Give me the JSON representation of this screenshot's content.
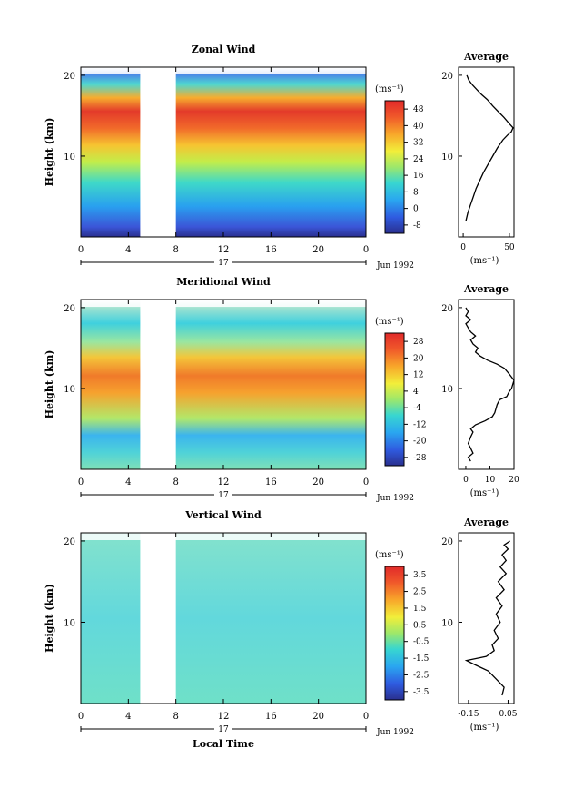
{
  "chart_data": [
    {
      "id": "zonal",
      "type": "heatmap",
      "title": "Zonal Wind",
      "ylabel": "Height (km)",
      "y_ticks": [
        "20",
        "10"
      ],
      "x_ticks": [
        "0",
        "4",
        "8",
        "12",
        "16",
        "20",
        "0"
      ],
      "day_label": "17",
      "date_label": "Jun 1992",
      "unit_label": "(ms⁻¹)",
      "colorbar_ticks": [
        "48",
        "40",
        "32",
        "24",
        "16",
        "8",
        "0",
        "-8"
      ],
      "colorbar_range": [
        -12,
        52
      ],
      "data_gap_hours": [
        5,
        8
      ],
      "profile_title": "Average",
      "profile_x_ticks": [
        "0",
        "50"
      ],
      "profile_xlabel": "(ms⁻¹)",
      "profile_y_ticks": [
        "20",
        "10"
      ],
      "profile_xlim": [
        -5,
        55
      ],
      "profile": [
        [
          3,
          2
        ],
        [
          5,
          3
        ],
        [
          8,
          4
        ],
        [
          11,
          5
        ],
        [
          14,
          6
        ],
        [
          18,
          7
        ],
        [
          22,
          8
        ],
        [
          27,
          9
        ],
        [
          32,
          10
        ],
        [
          37,
          11
        ],
        [
          43,
          12
        ],
        [
          48,
          12.6
        ],
        [
          52,
          13
        ],
        [
          54,
          13.5
        ],
        [
          50,
          14
        ],
        [
          44,
          14.8
        ],
        [
          38,
          15.5
        ],
        [
          32,
          16.2
        ],
        [
          26,
          17
        ],
        [
          20,
          17.6
        ],
        [
          15,
          18.2
        ],
        [
          10,
          18.8
        ],
        [
          6,
          19.4
        ],
        [
          4,
          20
        ]
      ]
    },
    {
      "id": "meridional",
      "type": "heatmap",
      "title": "Meridional Wind",
      "ylabel": "Height (km)",
      "y_ticks": [
        "20",
        "10"
      ],
      "x_ticks": [
        "0",
        "4",
        "8",
        "12",
        "16",
        "20",
        "0"
      ],
      "day_label": "17",
      "date_label": "Jun 1992",
      "unit_label": "(ms⁻¹)",
      "colorbar_ticks": [
        "28",
        "20",
        "12",
        "4",
        "-4",
        "-12",
        "-20",
        "-28"
      ],
      "colorbar_range": [
        -32,
        32
      ],
      "data_gap_hours": [
        5,
        8
      ],
      "profile_title": "Average",
      "profile_x_ticks": [
        "0",
        "10",
        "20"
      ],
      "profile_xlabel": "(ms⁻¹)",
      "profile_y_ticks": [
        "20",
        "10"
      ],
      "profile_xlim": [
        -3,
        20
      ],
      "profile": [
        [
          2,
          1
        ],
        [
          1,
          1.5
        ],
        [
          3,
          2
        ],
        [
          2,
          2.6
        ],
        [
          1,
          3.2
        ],
        [
          2,
          4
        ],
        [
          3,
          4.6
        ],
        [
          2,
          5
        ],
        [
          4,
          5.5
        ],
        [
          8,
          6
        ],
        [
          11,
          6.5
        ],
        [
          12,
          7
        ],
        [
          13,
          8
        ],
        [
          14,
          8.6
        ],
        [
          17,
          9
        ],
        [
          18,
          9.6
        ],
        [
          19,
          10
        ],
        [
          20,
          11
        ],
        [
          18,
          11.8
        ],
        [
          16,
          12.5
        ],
        [
          13,
          13
        ],
        [
          9,
          13.5
        ],
        [
          6,
          14
        ],
        [
          4,
          14.5
        ],
        [
          5,
          15
        ],
        [
          3,
          15.5
        ],
        [
          2,
          16
        ],
        [
          4,
          16.5
        ],
        [
          2,
          17
        ],
        [
          1,
          17.5
        ],
        [
          0,
          18
        ],
        [
          2,
          18.5
        ],
        [
          0,
          19
        ],
        [
          1,
          19.5
        ],
        [
          0,
          20
        ]
      ]
    },
    {
      "id": "vertical",
      "type": "heatmap",
      "title": "Vertical Wind",
      "ylabel": "Height (km)",
      "xlabel": "Local Time",
      "y_ticks": [
        "20",
        "10"
      ],
      "x_ticks": [
        "0",
        "4",
        "8",
        "12",
        "16",
        "20",
        "0"
      ],
      "day_label": "17",
      "date_label": "Jun 1992",
      "unit_label": "(ms⁻¹)",
      "colorbar_ticks": [
        "3.5",
        "2.5",
        "1.5",
        "0.5",
        "-0.5",
        "-1.5",
        "-2.5",
        "-3.5"
      ],
      "colorbar_range": [
        -4,
        4
      ],
      "data_gap_hours": [
        5,
        8
      ],
      "profile_title": "Average",
      "profile_x_ticks": [
        "-0.15",
        "0.05"
      ],
      "profile_xlabel": "(ms⁻¹)",
      "profile_y_ticks": [
        "20",
        "10"
      ],
      "profile_xlim": [
        -0.2,
        0.08
      ],
      "profile": [
        [
          0.02,
          1
        ],
        [
          0.03,
          2
        ],
        [
          -0.01,
          3
        ],
        [
          -0.05,
          4
        ],
        [
          -0.12,
          4.8
        ],
        [
          -0.16,
          5.3
        ],
        [
          -0.06,
          5.8
        ],
        [
          -0.02,
          6.5
        ],
        [
          -0.03,
          7.2
        ],
        [
          0,
          8
        ],
        [
          -0.02,
          9
        ],
        [
          0.01,
          10
        ],
        [
          -0.01,
          11
        ],
        [
          0.02,
          12
        ],
        [
          -0.01,
          13
        ],
        [
          0.03,
          14
        ],
        [
          0,
          15
        ],
        [
          0.04,
          16
        ],
        [
          0.01,
          16.8
        ],
        [
          0.04,
          17.6
        ],
        [
          0.02,
          18.3
        ],
        [
          0.05,
          19
        ],
        [
          0.03,
          19.5
        ],
        [
          0.06,
          20
        ]
      ]
    }
  ]
}
